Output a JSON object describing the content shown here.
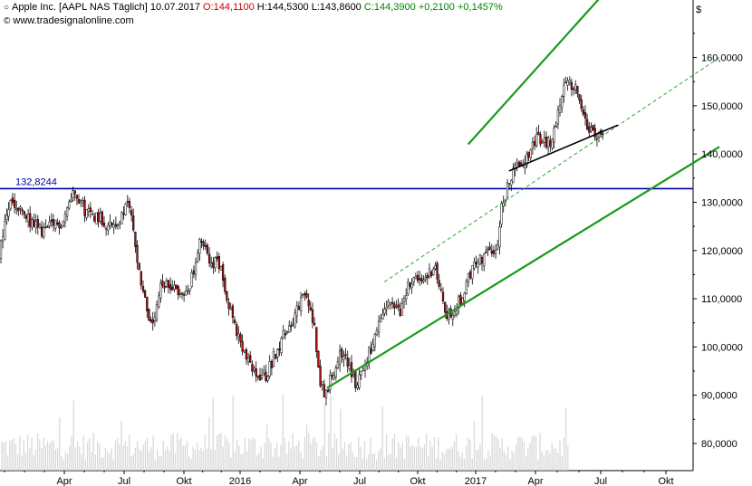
{
  "header": {
    "instrument": "Apple Inc. [AAPL NAS Täglich]",
    "date": "10.07.2017",
    "open": "O:144,1100",
    "high": "H:144,5300",
    "low": "L:143,8600",
    "close": "C:144,3900",
    "change_abs": "+0,2100",
    "change_pct": "+0,1457%",
    "source": "www.tradesignalonline.com",
    "currency": "$"
  },
  "colors": {
    "up_candle": "#ffffff",
    "down_candle": "#aa1111",
    "channel": "#1a9a1a",
    "resistance": "#0000aa",
    "volume": "#d9d9d9",
    "trend": "#000000"
  },
  "chart_data": {
    "type": "candlestick",
    "title": "Apple Inc. [AAPL NAS Täglich]",
    "x_ticks": [
      "Apr",
      "Jul",
      "Okt",
      "2016",
      "Apr",
      "Jul",
      "Okt",
      "2017",
      "Apr",
      "Jul",
      "Okt"
    ],
    "y_ticks": [
      "80,0000",
      "90,0000",
      "100,0000",
      "110,0000",
      "120,0000",
      "130,0000",
      "140,0000",
      "150,0000",
      "160,0000"
    ],
    "ylim": [
      77.5,
      175
    ],
    "resistance": {
      "label": "132,8244",
      "value": 132.8244
    },
    "price_path": [
      [
        "2015-01-02",
        118
      ],
      [
        "2015-01-20",
        130
      ],
      [
        "2015-02-20",
        126
      ],
      [
        "2015-03-10",
        124
      ],
      [
        "2015-04-10",
        126
      ],
      [
        "2015-04-28",
        133
      ],
      [
        "2015-05-15",
        128
      ],
      [
        "2015-06-05",
        127
      ],
      [
        "2015-06-20",
        125
      ],
      [
        "2015-07-05",
        126
      ],
      [
        "2015-07-20",
        130
      ],
      [
        "2015-08-05",
        115
      ],
      [
        "2015-08-24",
        103
      ],
      [
        "2015-09-05",
        112
      ],
      [
        "2015-09-25",
        113
      ],
      [
        "2015-10-10",
        110
      ],
      [
        "2015-10-25",
        115
      ],
      [
        "2015-11-05",
        122
      ],
      [
        "2015-11-20",
        118
      ],
      [
        "2015-12-05",
        117
      ],
      [
        "2015-12-20",
        108
      ],
      [
        "2016-01-05",
        100
      ],
      [
        "2016-01-27",
        94
      ],
      [
        "2016-02-12",
        94
      ],
      [
        "2016-03-05",
        101
      ],
      [
        "2016-03-25",
        106
      ],
      [
        "2016-04-12",
        111
      ],
      [
        "2016-04-25",
        105
      ],
      [
        "2016-05-05",
        93
      ],
      [
        "2016-05-12",
        90
      ],
      [
        "2016-06-01",
        98
      ],
      [
        "2016-06-10",
        99
      ],
      [
        "2016-06-27",
        92
      ],
      [
        "2016-07-10",
        96
      ],
      [
        "2016-07-27",
        102
      ],
      [
        "2016-08-15",
        109
      ],
      [
        "2016-09-05",
        107
      ],
      [
        "2016-09-15",
        114
      ],
      [
        "2016-10-05",
        113
      ],
      [
        "2016-10-25",
        117
      ],
      [
        "2016-11-05",
        110
      ],
      [
        "2016-11-14",
        106
      ],
      [
        "2016-12-05",
        110
      ],
      [
        "2016-12-20",
        116
      ],
      [
        "2017-01-10",
        119
      ],
      [
        "2017-01-31",
        121
      ],
      [
        "2017-02-01",
        128
      ],
      [
        "2017-02-20",
        136
      ],
      [
        "2017-03-10",
        139
      ],
      [
        "2017-03-28",
        143
      ],
      [
        "2017-04-20",
        142
      ],
      [
        "2017-05-12",
        156
      ],
      [
        "2017-05-30",
        153
      ],
      [
        "2017-06-09",
        149
      ],
      [
        "2017-06-15",
        145
      ],
      [
        "2017-06-28",
        143
      ],
      [
        "2017-07-10",
        144.39
      ]
    ],
    "volume": "relative daily volume bars along the bottom of the price panel",
    "channel_lines": [
      {
        "name": "channel-upper",
        "from": [
          "2016-12-15",
          142
        ],
        "to": [
          "2017-07-20",
          175
        ]
      },
      {
        "name": "channel-lower",
        "from": [
          "2016-05-15",
          91.5
        ],
        "to": [
          "2017-12-31",
          141.5
        ]
      },
      {
        "name": "channel-mid",
        "from": [
          "2016-08-10",
          113.5
        ],
        "to": [
          "2017-12-31",
          160
        ]
      },
      {
        "name": "support-trend",
        "from": [
          "2017-02-15",
          136.5
        ],
        "to": [
          "2017-07-30",
          146
        ]
      }
    ]
  }
}
